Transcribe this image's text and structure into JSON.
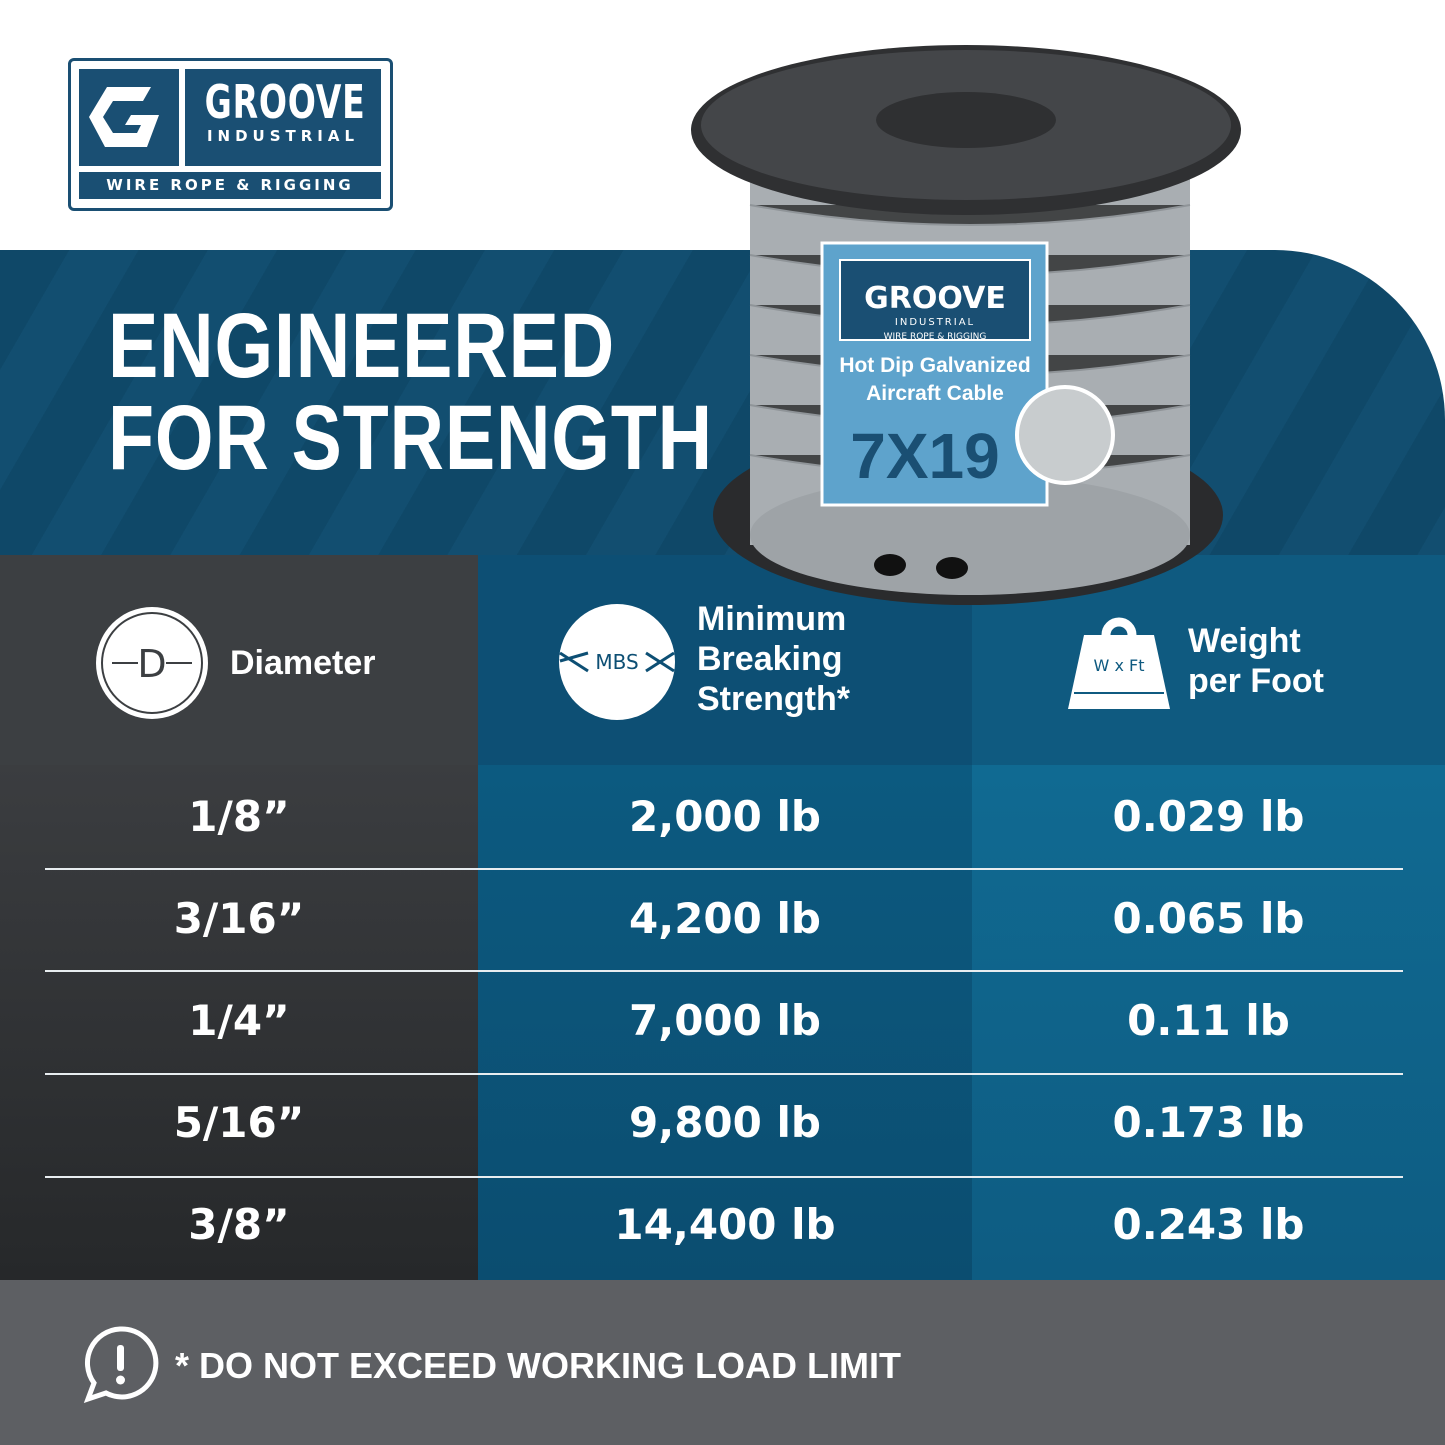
{
  "brand": {
    "name": "GROOVE",
    "sub": "INDUSTRIAL",
    "tagline": "WIRE ROPE & RIGGING"
  },
  "headline": {
    "line1": "ENGINEERED",
    "line2": "FOR STRENGTH"
  },
  "product_label": {
    "brand": "GROOVE",
    "sub": "INDUSTRIAL",
    "tagline": "WIRE ROPE & RIGGING",
    "line1": "Hot Dip Galvanized",
    "line2": "Aircraft Cable",
    "construction": "7X19"
  },
  "table": {
    "headers": [
      {
        "label": "Diameter",
        "icon": "diameter-icon",
        "icon_text": "D"
      },
      {
        "label": "Minimum Breaking Strength*",
        "icon": "mbs-icon",
        "icon_text": "MBS"
      },
      {
        "label": "Weight per Foot",
        "icon": "weight-icon",
        "icon_text": "W x Ft"
      }
    ],
    "rows": [
      {
        "diameter": "1/8”",
        "mbs": "2,000 lb",
        "weight": "0.029 lb"
      },
      {
        "diameter": "3/16”",
        "mbs": "4,200 lb",
        "weight": "0.065 lb"
      },
      {
        "diameter": "1/4”",
        "mbs": "7,000 lb",
        "weight": "0.11 lb"
      },
      {
        "diameter": "5/16”",
        "mbs": "9,800 lb",
        "weight": "0.173 lb"
      },
      {
        "diameter": "3/8”",
        "mbs": "14,400 lb",
        "weight": "0.243 lb"
      }
    ]
  },
  "footer": {
    "warning": "* DO NOT EXCEED WORKING LOAD LIMIT",
    "icon": "alert-bubble-icon"
  },
  "colors": {
    "brand_blue": "#1a4f73",
    "band": "#0f4868",
    "gray": "#3c3f42",
    "col2": "#0b5379",
    "col3": "#0f6890",
    "footer": "#5d5f63"
  }
}
